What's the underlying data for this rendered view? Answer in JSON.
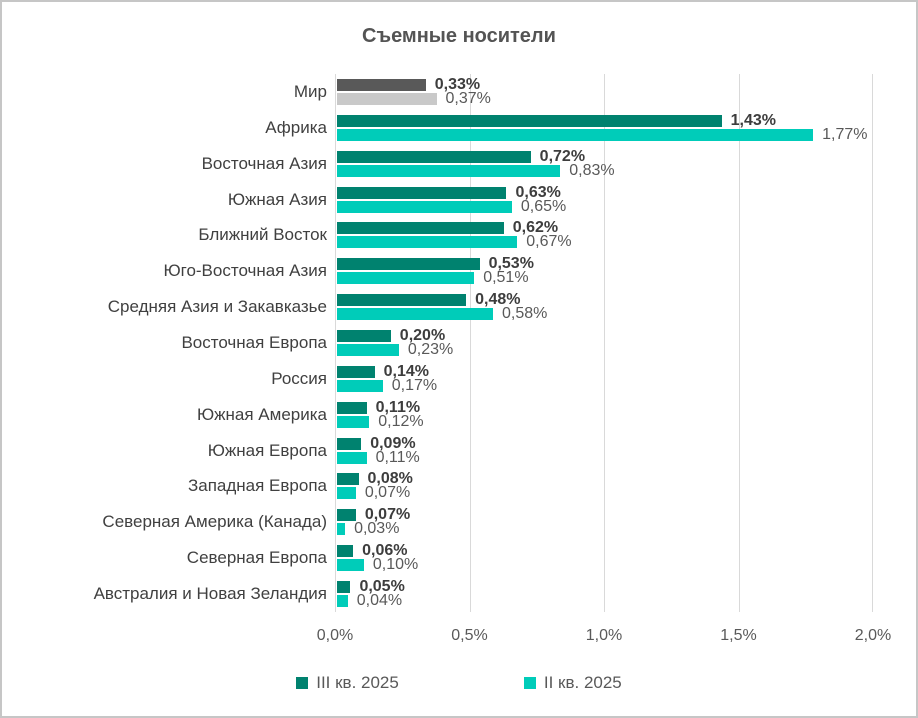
{
  "title": "Съемные носители",
  "colors": {
    "series_q3": "#00826F",
    "series_q2": "#00CCB9",
    "world_q3": "#595959",
    "world_q2": "#C9C9C9",
    "label_bold": "#3D3D3D",
    "label_regular": "#595959",
    "gridline": "#D9D9D9",
    "category_text": "#404040",
    "axis_text": "#595959",
    "title_text": "#545454"
  },
  "chart_data": {
    "type": "bar",
    "orientation": "horizontal",
    "title": "Съемные носители",
    "categories": [
      "Мир",
      "Африка",
      "Восточная Азия",
      "Южная Азия",
      "Ближний Восток",
      "Юго-Восточная Азия",
      "Средняя Азия и Закавказье",
      "Восточная Европа",
      "Россия",
      "Южная Америка",
      "Южная Европа",
      "Западная Европа",
      "Северная Америка (Канада)",
      "Северная Европа",
      "Австралия и Новая Зеландия"
    ],
    "series": [
      {
        "name": "III кв. 2025",
        "color": "#00826F",
        "values": [
          0.33,
          1.43,
          0.72,
          0.63,
          0.62,
          0.53,
          0.48,
          0.2,
          0.14,
          0.11,
          0.09,
          0.08,
          0.07,
          0.06,
          0.05
        ],
        "labels": [
          "0,33%",
          "1,43%",
          "0,72%",
          "0,63%",
          "0,62%",
          "0,53%",
          "0,48%",
          "0,20%",
          "0,14%",
          "0,11%",
          "0,09%",
          "0,08%",
          "0,07%",
          "0,06%",
          "0,05%"
        ]
      },
      {
        "name": "II кв. 2025",
        "color": "#00CCB9",
        "values": [
          0.37,
          1.77,
          0.83,
          0.65,
          0.67,
          0.51,
          0.58,
          0.23,
          0.17,
          0.12,
          0.11,
          0.07,
          0.03,
          0.1,
          0.04
        ],
        "labels": [
          "0,37%",
          "1,77%",
          "0,83%",
          "0,65%",
          "0,67%",
          "0,51%",
          "0,58%",
          "0,23%",
          "0,17%",
          "0,12%",
          "0,11%",
          "0,07%",
          "0,03%",
          "0,10%",
          "0,04%"
        ]
      }
    ],
    "world_category": "Мир",
    "world_colors": [
      "#595959",
      "#C9C9C9"
    ],
    "x_ticks": [
      "0,0%",
      "0,5%",
      "1,0%",
      "1,5%",
      "2,0%"
    ],
    "xlim": [
      0,
      2.0
    ],
    "grid": "vertical",
    "legend_position": "bottom"
  },
  "legend": {
    "items": [
      {
        "label": "III кв. 2025",
        "color": "#00826F"
      },
      {
        "label": "II кв. 2025",
        "color": "#00CCB9"
      }
    ]
  }
}
